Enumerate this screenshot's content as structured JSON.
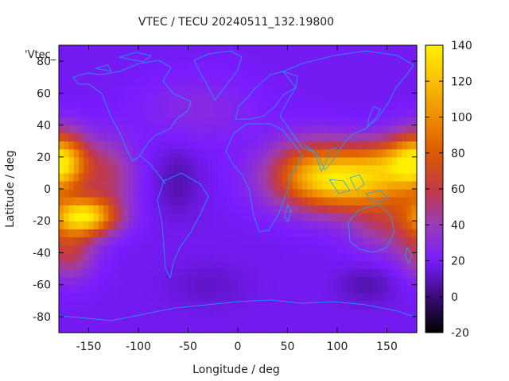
{
  "chart_data": {
    "type": "heatmap",
    "title": "VTEC / TECU 20240511_132.19800",
    "xlabel": "Longitude / deg",
    "ylabel": "Latitude / deg",
    "key_label": "'Vtec_",
    "xlim": [
      -180,
      180
    ],
    "ylim": [
      -90,
      90
    ],
    "x_ticks": [
      -150,
      -100,
      -50,
      0,
      50,
      100,
      150
    ],
    "y_ticks": [
      -80,
      -60,
      -40,
      -20,
      0,
      20,
      40,
      60,
      80
    ],
    "colorbar": {
      "range": [
        -20,
        140
      ],
      "ticks": [
        -20,
        0,
        20,
        40,
        60,
        80,
        100,
        120,
        140
      ]
    },
    "base_value": 18,
    "features": [
      {
        "lon": 115,
        "lat": 5,
        "amp": 95,
        "slon": 45,
        "slat": 13
      },
      {
        "lon": 75,
        "lat": 12,
        "amp": 45,
        "slon": 30,
        "slat": 14
      },
      {
        "lon": 160,
        "lat": 18,
        "amp": 45,
        "slon": 30,
        "slat": 10
      },
      {
        "lon": 150,
        "lat": -22,
        "amp": 28,
        "slon": 25,
        "slat": 12
      },
      {
        "lon": -155,
        "lat": -17,
        "amp": 110,
        "slon": 22,
        "slat": 8
      },
      {
        "lon": -178,
        "lat": 18,
        "amp": 75,
        "slon": 18,
        "slat": 13
      },
      {
        "lon": -170,
        "lat": -38,
        "amp": 40,
        "slon": 18,
        "slat": 12
      },
      {
        "lon": -130,
        "lat": 8,
        "amp": 30,
        "slon": 18,
        "slat": 16
      },
      {
        "lon": -40,
        "lat": 50,
        "amp": 10,
        "slon": 40,
        "slat": 15
      },
      {
        "lon": -60,
        "lat": 5,
        "amp": -10,
        "slon": 15,
        "slat": 15
      },
      {
        "lon": 130,
        "lat": -60,
        "amp": -10,
        "slon": 20,
        "slat": 8
      },
      {
        "lon": -30,
        "lat": -60,
        "amp": -6,
        "slon": 30,
        "slat": 10
      }
    ],
    "grid": false
  }
}
